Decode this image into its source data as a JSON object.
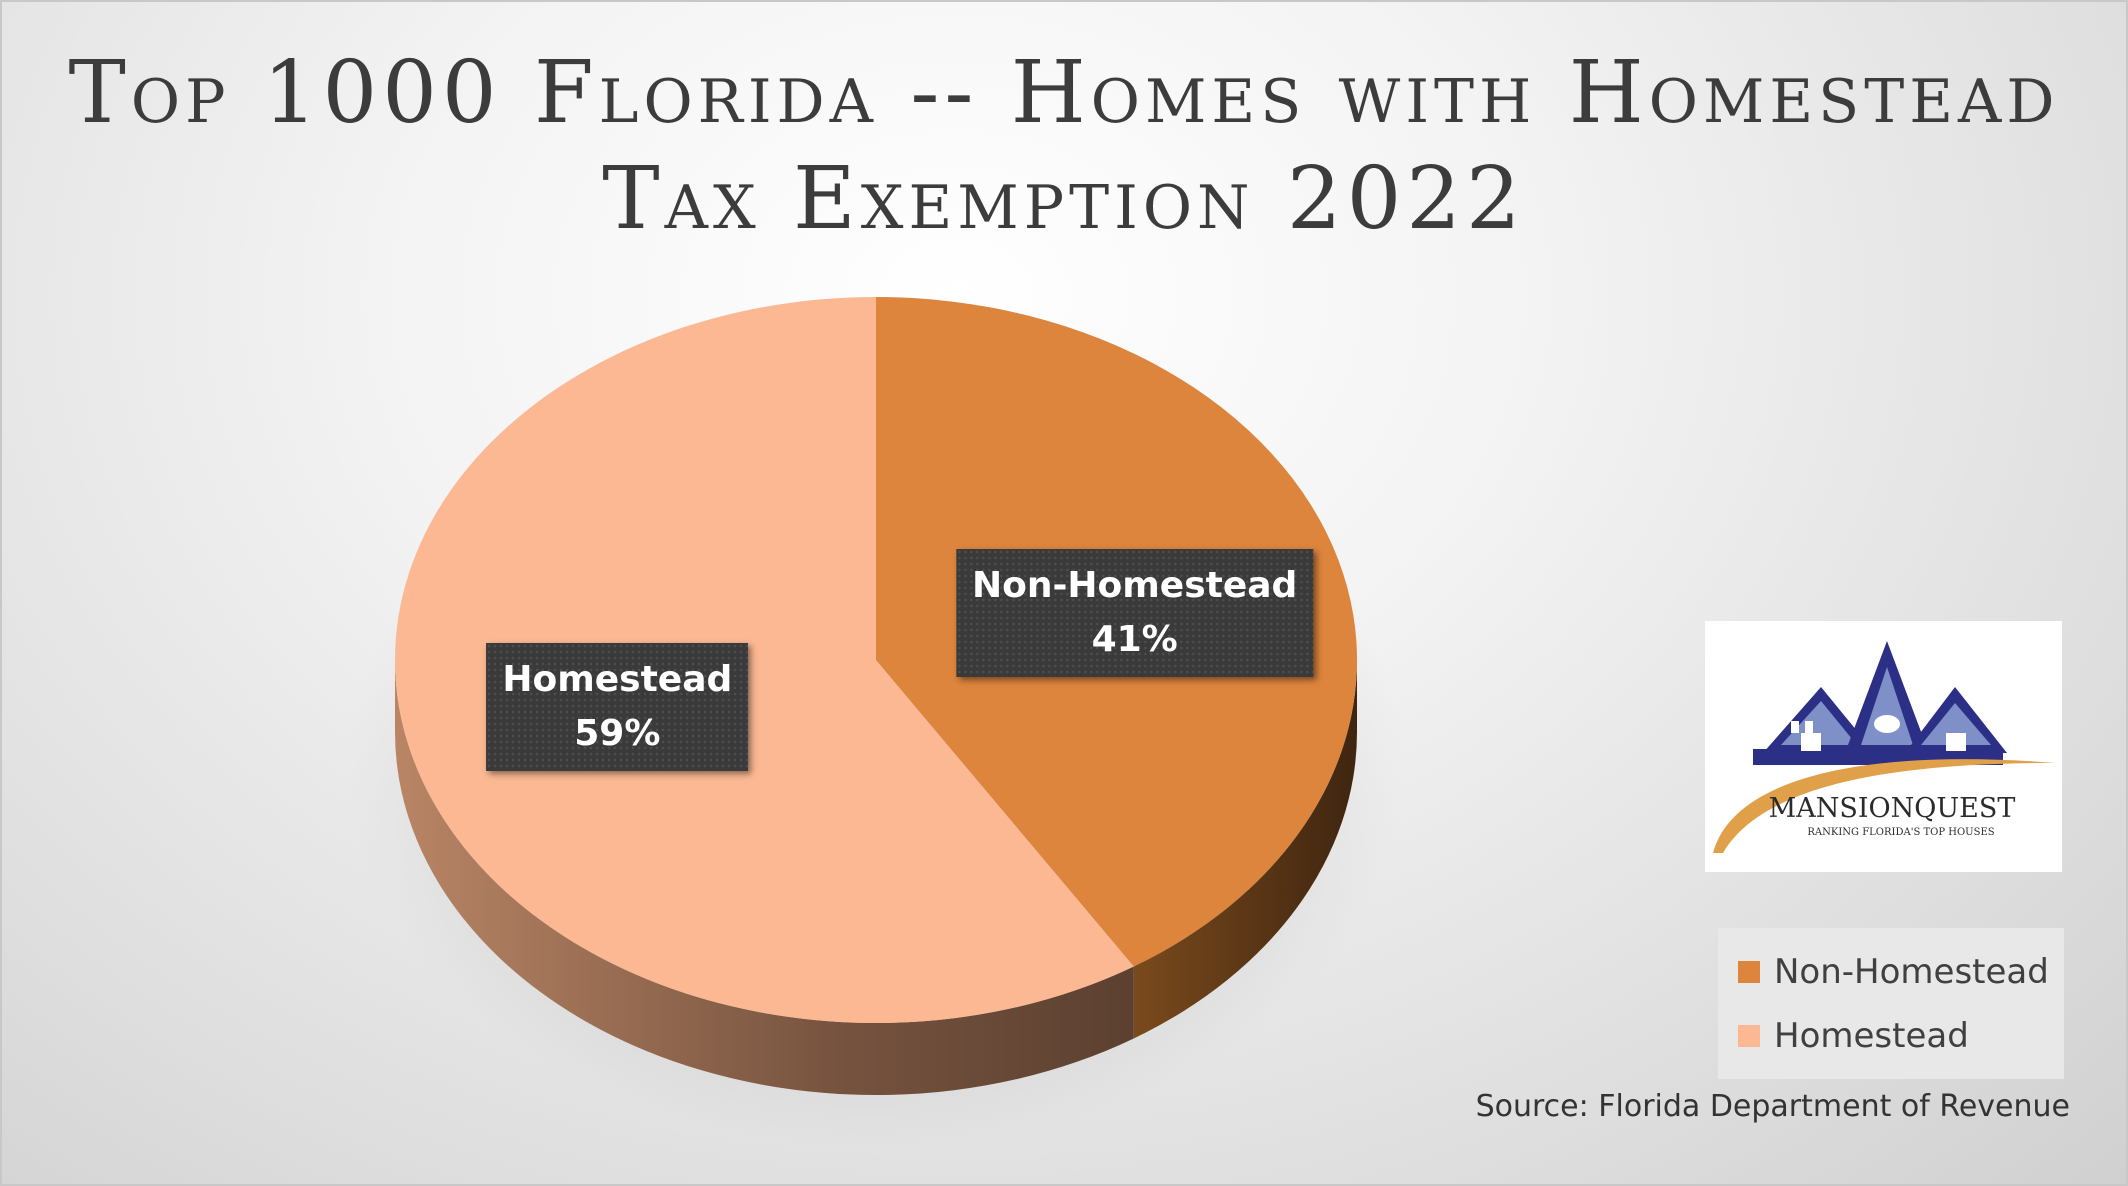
{
  "chart_data": {
    "type": "pie",
    "title": "Top 1000 Florida -- Homes with Homestead Tax Exemption 2022",
    "labels": [
      "Non-Homestead",
      "Homestead"
    ],
    "values": [
      41,
      59
    ],
    "value_suffix": "%",
    "colors": [
      "#dd843d",
      "#fbb893"
    ],
    "legend_position": "right",
    "legend": [
      "Non-Homestead",
      "Homestead"
    ],
    "style": "3D"
  },
  "title": "Top 1000 Florida -- Homes with Homestead Tax Exemption 2022",
  "source": "Source: Florida Department of Revenue",
  "logo": {
    "name": "MANSIONQUEST",
    "tagline": "RANKING FLORIDA'S TOP HOUSES",
    "colors": {
      "house": "#2c2f86",
      "window": "#7f8fc7",
      "swoosh": "#e0a04a"
    }
  }
}
